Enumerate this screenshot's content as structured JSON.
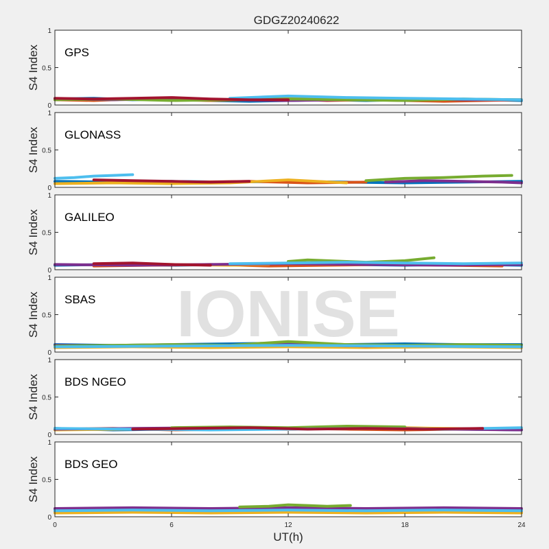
{
  "title": "GDGZ20240622",
  "watermark": "IONISE",
  "xlabel": "UT(h)",
  "ylabel": "S4 Index",
  "xticks": [
    "0",
    "6",
    "12",
    "18",
    "24"
  ],
  "yticks": [
    "0",
    "0.5",
    "1"
  ],
  "colors": {
    "figure_bg": "#f0f0f0",
    "axes_bg": "#ffffff",
    "series": [
      "#0072BD",
      "#D95319",
      "#EDB120",
      "#7E2F8E",
      "#77AC30",
      "#4DBEEE",
      "#A2142F"
    ]
  },
  "chart_data": [
    {
      "type": "line",
      "label": "GPS",
      "xlim": [
        0,
        24
      ],
      "ylim": [
        0,
        1
      ],
      "grid": false,
      "series": [
        {
          "x": [
            0,
            2,
            4,
            6,
            8,
            10,
            12,
            14,
            16,
            18,
            20,
            22,
            24
          ],
          "values": [
            0.08,
            0.09,
            0.07,
            0.08,
            0.06,
            0.05,
            0.06,
            0.07,
            0.06,
            0.07,
            0.08,
            0.07,
            0.06
          ]
        },
        {
          "x": [
            0,
            2,
            4,
            6,
            8,
            10,
            12,
            14,
            16,
            18,
            20,
            22,
            24
          ],
          "values": [
            0.07,
            0.06,
            0.08,
            0.07,
            0.06,
            0.07,
            0.08,
            0.06,
            0.07,
            0.06,
            0.05,
            0.06,
            0.07
          ]
        },
        {
          "x": [
            10,
            12,
            14,
            16,
            18
          ],
          "values": [
            0.09,
            0.1,
            0.08,
            0.09,
            0.07
          ]
        },
        {
          "x": [
            0,
            3,
            6,
            9,
            12,
            15,
            18,
            21,
            24
          ],
          "values": [
            0.08,
            0.07,
            0.08,
            0.07,
            0.06,
            0.07,
            0.08,
            0.07,
            0.07
          ]
        },
        {
          "x": [
            0,
            3,
            6,
            9,
            12,
            15,
            18,
            21,
            24
          ],
          "values": [
            0.07,
            0.08,
            0.06,
            0.07,
            0.08,
            0.07,
            0.06,
            0.08,
            0.07
          ]
        },
        {
          "x": [
            9,
            12,
            15,
            18,
            21,
            24
          ],
          "values": [
            0.09,
            0.12,
            0.1,
            0.09,
            0.08,
            0.07
          ]
        },
        {
          "x": [
            0,
            2,
            4,
            6,
            8,
            10,
            12
          ],
          "values": [
            0.09,
            0.08,
            0.09,
            0.1,
            0.08,
            0.07,
            0.07
          ]
        }
      ]
    },
    {
      "type": "line",
      "label": "GLONASS",
      "xlim": [
        0,
        24
      ],
      "ylim": [
        0,
        1
      ],
      "grid": false,
      "series": [
        {
          "x": [
            0,
            3,
            6,
            9,
            12,
            15,
            18,
            21,
            24
          ],
          "values": [
            0.08,
            0.07,
            0.08,
            0.07,
            0.08,
            0.07,
            0.06,
            0.07,
            0.08
          ]
        },
        {
          "x": [
            4,
            7,
            10,
            13,
            16
          ],
          "values": [
            0.06,
            0.07,
            0.08,
            0.06,
            0.07
          ]
        },
        {
          "x": [
            0,
            3,
            6,
            9,
            12,
            15
          ],
          "values": [
            0.05,
            0.06,
            0.05,
            0.06,
            0.1,
            0.06
          ]
        },
        {
          "x": [
            17,
            19,
            21,
            23,
            24
          ],
          "values": [
            0.07,
            0.09,
            0.08,
            0.07,
            0.06
          ]
        },
        {
          "x": [
            16,
            18,
            20,
            22,
            23.5
          ],
          "values": [
            0.09,
            0.12,
            0.13,
            0.15,
            0.16
          ]
        },
        {
          "x": [
            0,
            1,
            2,
            3,
            4
          ],
          "values": [
            0.12,
            0.13,
            0.15,
            0.16,
            0.17
          ]
        },
        {
          "x": [
            2,
            4,
            6,
            8,
            10
          ],
          "values": [
            0.1,
            0.09,
            0.08,
            0.07,
            0.08
          ]
        }
      ]
    },
    {
      "type": "line",
      "label": "GALILEO",
      "xlim": [
        0,
        24
      ],
      "ylim": [
        0,
        1
      ],
      "grid": false,
      "series": [
        {
          "x": [
            0,
            3,
            6,
            9,
            12,
            15,
            18,
            21,
            24
          ],
          "values": [
            0.06,
            0.07,
            0.06,
            0.07,
            0.06,
            0.07,
            0.06,
            0.07,
            0.06
          ]
        },
        {
          "x": [
            2,
            5,
            8,
            11,
            14,
            17,
            20,
            23
          ],
          "values": [
            0.05,
            0.06,
            0.07,
            0.05,
            0.06,
            0.07,
            0.06,
            0.05
          ]
        },
        {
          "x": [
            3,
            6,
            9,
            11
          ],
          "values": [
            0.08,
            0.07,
            0.06,
            0.07
          ]
        },
        {
          "x": [
            0,
            4,
            8,
            12,
            16,
            20,
            24
          ],
          "values": [
            0.07,
            0.06,
            0.07,
            0.08,
            0.07,
            0.06,
            0.07
          ]
        },
        {
          "x": [
            12,
            13,
            14,
            15,
            16,
            18,
            19.5
          ],
          "values": [
            0.11,
            0.13,
            0.12,
            0.11,
            0.1,
            0.12,
            0.16
          ]
        },
        {
          "x": [
            9,
            12,
            15,
            18,
            21,
            24
          ],
          "values": [
            0.08,
            0.09,
            0.1,
            0.09,
            0.08,
            0.09
          ]
        },
        {
          "x": [
            2,
            4,
            6,
            8
          ],
          "values": [
            0.08,
            0.09,
            0.07,
            0.06
          ]
        }
      ]
    },
    {
      "type": "line",
      "label": "SBAS",
      "xlim": [
        0,
        24
      ],
      "ylim": [
        0,
        1
      ],
      "grid": false,
      "series": [
        {
          "x": [
            0,
            3,
            6,
            9,
            12,
            15,
            18,
            21,
            24
          ],
          "values": [
            0.1,
            0.09,
            0.1,
            0.11,
            0.12,
            0.1,
            0.11,
            0.1,
            0.1
          ]
        },
        {
          "x": [
            0,
            4,
            8,
            12,
            16,
            20,
            24
          ],
          "values": [
            0.07,
            0.08,
            0.07,
            0.08,
            0.07,
            0.08,
            0.07
          ]
        },
        {
          "x": [
            0,
            4,
            8,
            12,
            16,
            20,
            24
          ],
          "values": [
            0.06,
            0.07,
            0.06,
            0.07,
            0.06,
            0.07,
            0.06
          ]
        },
        {
          "x": [
            0,
            4,
            8,
            12,
            16,
            20,
            24
          ],
          "values": [
            0.09,
            0.08,
            0.09,
            0.1,
            0.08,
            0.09,
            0.08
          ]
        },
        {
          "x": [
            0,
            3,
            6,
            9,
            12,
            15,
            18,
            21,
            24
          ],
          "values": [
            0.08,
            0.09,
            0.1,
            0.09,
            0.14,
            0.1,
            0.09,
            0.1,
            0.09
          ]
        },
        {
          "x": [
            0,
            6,
            12,
            18,
            24
          ],
          "values": [
            0.07,
            0.08,
            0.09,
            0.08,
            0.07
          ]
        }
      ]
    },
    {
      "type": "line",
      "label": "BDS NGEO",
      "xlim": [
        0,
        24
      ],
      "ylim": [
        0,
        1
      ],
      "grid": false,
      "series": [
        {
          "x": [
            0,
            3,
            6,
            9,
            12,
            15,
            18,
            21,
            24
          ],
          "values": [
            0.08,
            0.06,
            0.07,
            0.08,
            0.07,
            0.09,
            0.08,
            0.07,
            0.06
          ]
        },
        {
          "x": [
            0,
            3,
            6,
            9,
            12,
            15,
            18,
            21,
            24
          ],
          "values": [
            0.07,
            0.08,
            0.06,
            0.07,
            0.08,
            0.07,
            0.06,
            0.07,
            0.08
          ]
        },
        {
          "x": [
            0,
            4,
            8,
            12,
            16,
            20,
            24
          ],
          "values": [
            0.06,
            0.07,
            0.08,
            0.07,
            0.1,
            0.08,
            0.07
          ]
        },
        {
          "x": [
            0,
            4,
            8,
            12,
            16,
            20,
            24
          ],
          "values": [
            0.07,
            0.08,
            0.09,
            0.08,
            0.09,
            0.07,
            0.06
          ]
        },
        {
          "x": [
            6,
            9,
            12,
            15,
            18
          ],
          "values": [
            0.09,
            0.1,
            0.09,
            0.11,
            0.1
          ]
        },
        {
          "x": [
            0,
            4,
            8,
            12,
            16,
            20,
            24
          ],
          "values": [
            0.08,
            0.07,
            0.06,
            0.07,
            0.08,
            0.07,
            0.09
          ]
        },
        {
          "x": [
            4,
            7,
            10,
            13,
            16,
            19,
            22
          ],
          "values": [
            0.07,
            0.08,
            0.09,
            0.07,
            0.08,
            0.07,
            0.08
          ]
        }
      ]
    },
    {
      "type": "line",
      "label": "BDS GEO",
      "xlim": [
        0,
        24
      ],
      "ylim": [
        0,
        1
      ],
      "grid": false,
      "series": [
        {
          "x": [
            0,
            4,
            8,
            12,
            16,
            20,
            24
          ],
          "values": [
            0.09,
            0.1,
            0.09,
            0.1,
            0.09,
            0.1,
            0.09
          ]
        },
        {
          "x": [
            0,
            4,
            8,
            12,
            16,
            20,
            24
          ],
          "values": [
            0.07,
            0.06,
            0.07,
            0.06,
            0.07,
            0.06,
            0.07
          ]
        },
        {
          "x": [
            0,
            4,
            8,
            12,
            16,
            20,
            24
          ],
          "values": [
            0.05,
            0.06,
            0.05,
            0.06,
            0.05,
            0.06,
            0.05
          ]
        },
        {
          "x": [
            0,
            4,
            8,
            12,
            16,
            20,
            24
          ],
          "values": [
            0.11,
            0.12,
            0.11,
            0.12,
            0.11,
            0.12,
            0.11
          ]
        },
        {
          "x": [
            9.5,
            11,
            12,
            13,
            14,
            15.2
          ],
          "values": [
            0.13,
            0.14,
            0.16,
            0.15,
            0.14,
            0.15
          ]
        },
        {
          "x": [
            0,
            4,
            8,
            12,
            16,
            20,
            24
          ],
          "values": [
            0.08,
            0.09,
            0.08,
            0.09,
            0.08,
            0.09,
            0.08
          ]
        }
      ]
    }
  ]
}
